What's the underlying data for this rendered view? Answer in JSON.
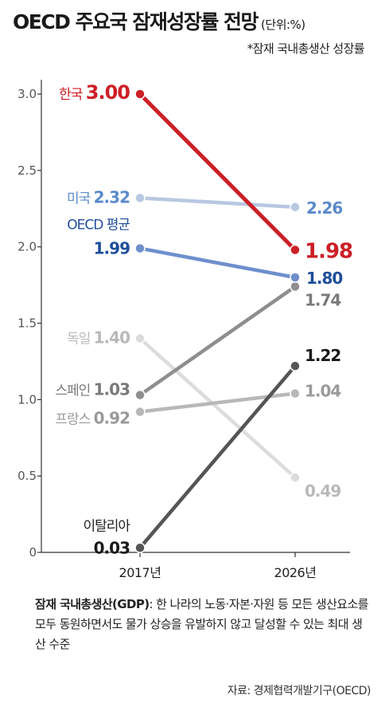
{
  "header": {
    "title": "OECD 주요국 잠재성장률 전망",
    "unit": "(단위:%)",
    "subtitle": "*잠재 국내총생산 성장률"
  },
  "chart_data": {
    "type": "line",
    "x": [
      "2017년",
      "2026년"
    ],
    "ylim": [
      0,
      3.0
    ],
    "yticks": [
      "0",
      "0.5",
      "1.0",
      "1.5",
      "2.0",
      "2.5",
      "3.0"
    ],
    "grid": false,
    "series": [
      {
        "name": "독일",
        "values": [
          1.4,
          0.49
        ],
        "labels": [
          "1.40",
          "0.49"
        ],
        "color": "#dcdcdc",
        "label_color": "#b9b9b9"
      },
      {
        "name": "미국",
        "values": [
          2.32,
          2.26
        ],
        "labels": [
          "2.32",
          "2.26"
        ],
        "color": "#b8c8e2",
        "label_color": "#5b8acb"
      },
      {
        "name": "프랑스",
        "values": [
          0.92,
          1.04
        ],
        "labels": [
          "0.92",
          "1.04"
        ],
        "color": "#b8b8b8",
        "label_color": "#9a9a9a"
      },
      {
        "name": "스페인",
        "values": [
          1.03,
          1.74
        ],
        "labels": [
          "1.03",
          "1.74"
        ],
        "color": "#8e8e8e",
        "label_color": "#7a7a7a"
      },
      {
        "name": "OECD 평균",
        "values": [
          1.99,
          1.8
        ],
        "labels": [
          "1.99",
          "1.80"
        ],
        "color": "#6f8fcc",
        "label_color": "#1f4e99"
      },
      {
        "name": "이탈리아",
        "values": [
          0.03,
          1.22
        ],
        "labels": [
          "0.03",
          "1.22"
        ],
        "color": "#555555",
        "label_color": "#1a1a1a"
      },
      {
        "name": "한국",
        "values": [
          3.0,
          1.98
        ],
        "labels": [
          "3.00",
          "1.98"
        ],
        "color": "#cc1f27",
        "label_color": "#cc1f27"
      }
    ]
  },
  "footnote": {
    "term": "잠재 국내총생산(GDP)",
    "definition": ": 한 나라의 노동·자본·자원 등 모든 생산요소를 모두 동원하면서도 물가 상승을 유발하지 않고 달성할 수 있는 최대 생산 수준"
  },
  "source": "자료: 경제협력개발기구(OECD)"
}
